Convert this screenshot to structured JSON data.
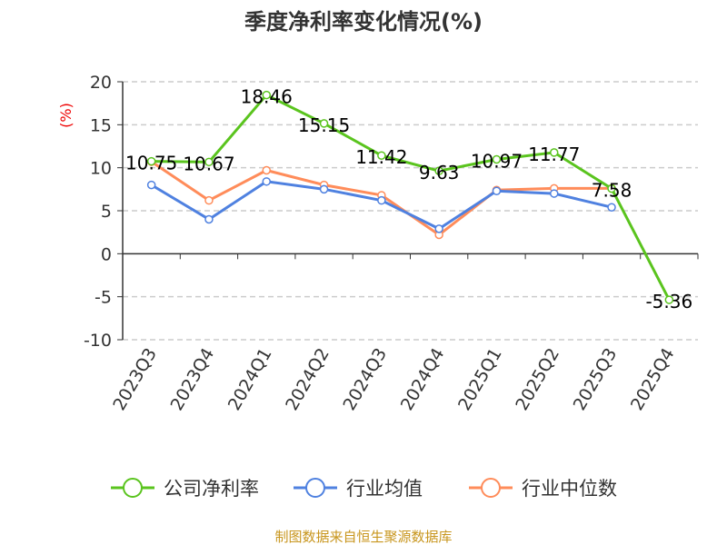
{
  "chart_data": {
    "type": "line",
    "title": "季度净利率变化情况(%)",
    "ylabel": "(%)",
    "xlabel": "",
    "ylim": [
      -10,
      20
    ],
    "yticks": [
      20,
      15,
      10,
      5,
      0,
      -5,
      -10
    ],
    "grid": true,
    "legend_position": "bottom",
    "categories": [
      "2023Q3",
      "2023Q4",
      "2024Q1",
      "2024Q2",
      "2024Q3",
      "2024Q4",
      "2025Q1",
      "2025Q2",
      "2025Q3",
      "2025Q4"
    ],
    "series": [
      {
        "name": "公司净利率",
        "color": "#5ac41e",
        "values": [
          10.75,
          10.67,
          18.46,
          15.15,
          11.42,
          9.63,
          10.97,
          11.77,
          7.58,
          -5.36
        ],
        "labels": [
          "10.75",
          "10.67",
          "18.46",
          "15.15",
          "11.42",
          "9.63",
          "10.97",
          "11.77",
          "7.58",
          "-5.36"
        ]
      },
      {
        "name": "行业均值",
        "color": "#4f81e0",
        "values": [
          8.0,
          4.0,
          8.4,
          7.5,
          6.2,
          2.9,
          7.3,
          7.0,
          5.4,
          null
        ]
      },
      {
        "name": "行业中位数",
        "color": "#ff8c5a",
        "values": [
          10.7,
          6.2,
          9.7,
          8.0,
          6.8,
          2.2,
          7.4,
          7.6,
          7.6,
          null
        ]
      }
    ]
  },
  "source": "制图数据来自恒生聚源数据库"
}
